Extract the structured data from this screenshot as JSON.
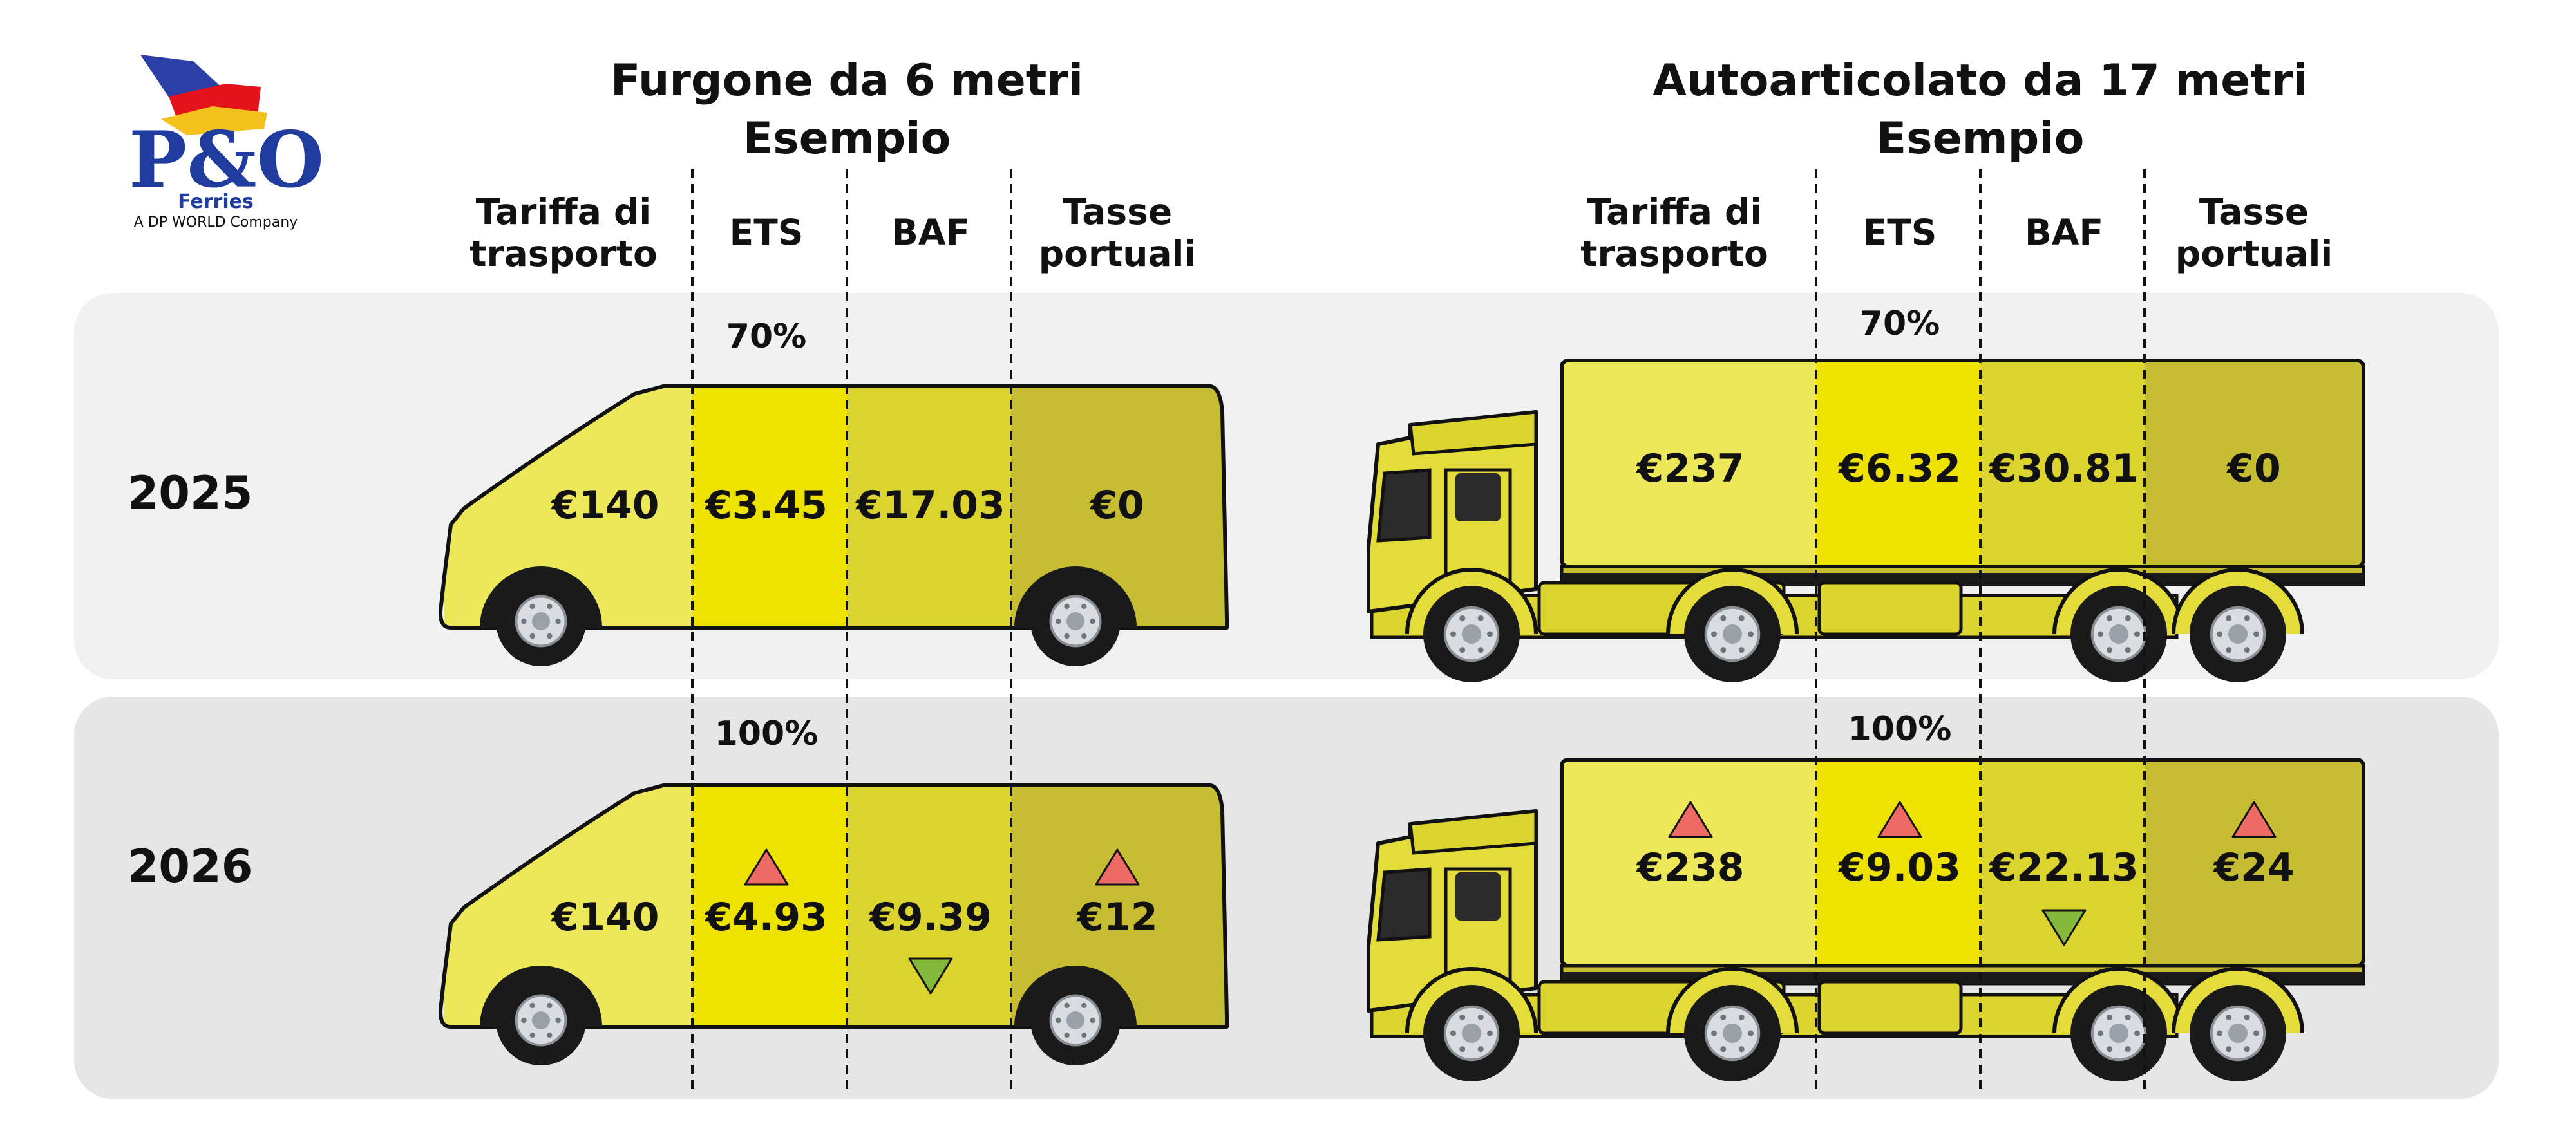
{
  "brand": {
    "name": "P&O",
    "sub": "Ferries",
    "tagline": "A DP WORLD Company"
  },
  "colors": {
    "col1": "#ece85a",
    "col2": "#eee300",
    "col3": "#dcd42e",
    "col4": "#c7bd33",
    "panel_2025": "#f1f1f1",
    "panel_2026": "#e6e6e6",
    "increase": "#ee6a64",
    "decrease": "#84b93c"
  },
  "van": {
    "title_line1": "Furgone da 6 metri",
    "title_line2": "Esempio",
    "headers": [
      "Tariffa di|trasporto",
      "ETS",
      "BAF",
      "Tasse|portuali"
    ]
  },
  "truck": {
    "title_line1": "Autoarticolato da 17 metri",
    "title_line2": "Esempio",
    "headers": [
      "Tariffa di|trasporto",
      "ETS",
      "BAF",
      "Tasse|portuali"
    ]
  },
  "rows": [
    {
      "year": "2025",
      "van": {
        "ets_pct": "70%",
        "values": [
          "€140",
          "€3.45",
          "€17.03",
          "€0"
        ],
        "trend": [
          "",
          "",
          "",
          ""
        ]
      },
      "truck": {
        "ets_pct": "70%",
        "values": [
          "€237",
          "€6.32",
          "€30.81",
          "€0"
        ],
        "trend": [
          "",
          "",
          "",
          ""
        ]
      }
    },
    {
      "year": "2026",
      "van": {
        "ets_pct": "100%",
        "values": [
          "€140",
          "€4.93",
          "€9.39",
          "€12"
        ],
        "trend": [
          "",
          "up",
          "down",
          "up"
        ]
      },
      "truck": {
        "ets_pct": "100%",
        "values": [
          "€238",
          "€9.03",
          "€22.13",
          "€24"
        ],
        "trend": [
          "up",
          "up",
          "down",
          "up"
        ]
      }
    }
  ]
}
